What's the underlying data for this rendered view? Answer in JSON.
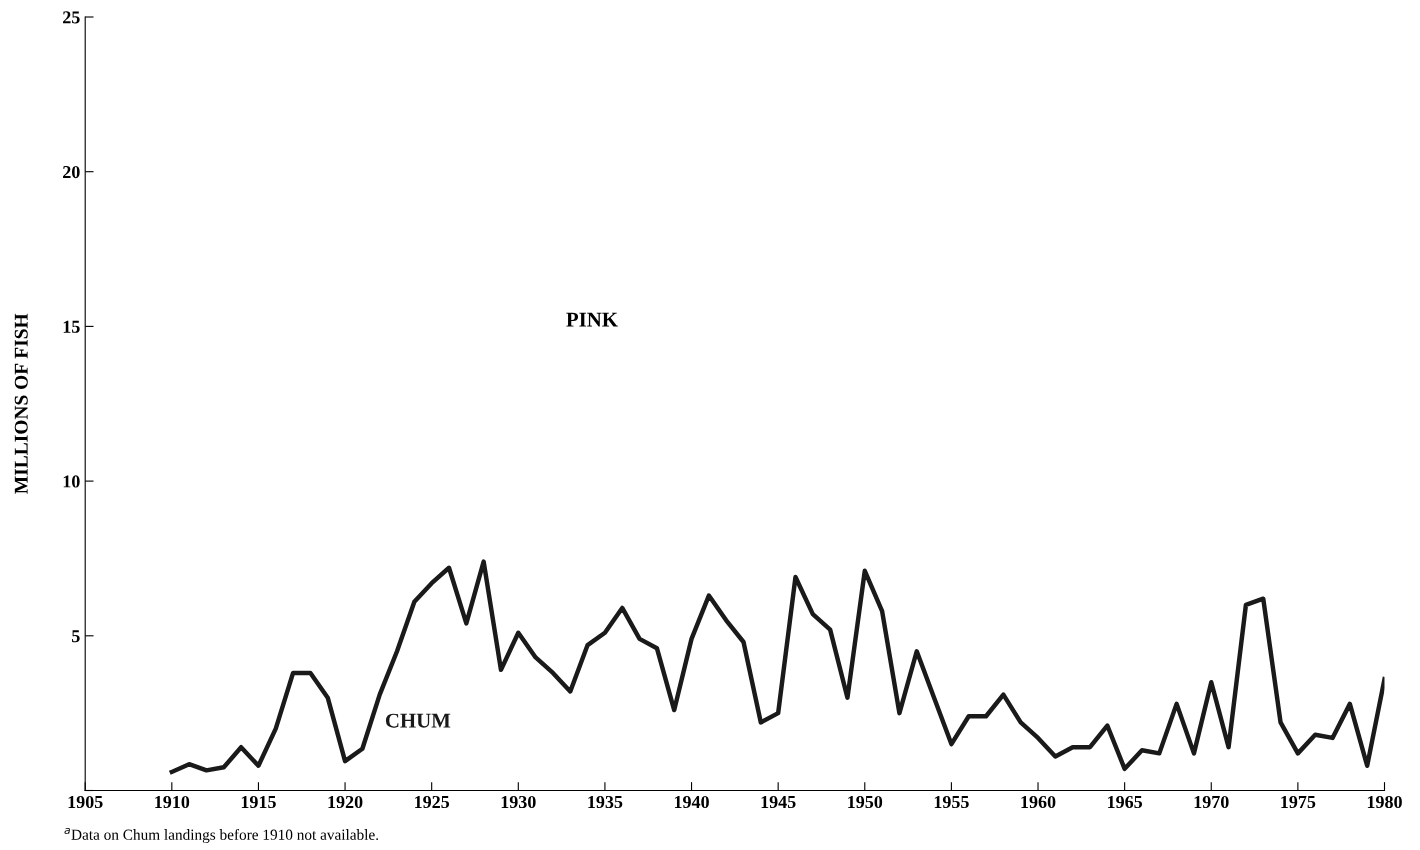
{
  "chart_data": {
    "type": "line",
    "ylabel": "MILLIONS OF FISH",
    "x": [
      1910,
      1911,
      1912,
      1913,
      1914,
      1915,
      1916,
      1917,
      1918,
      1919,
      1920,
      1921,
      1922,
      1923,
      1924,
      1925,
      1926,
      1927,
      1928,
      1929,
      1930,
      1931,
      1932,
      1933,
      1934,
      1935,
      1936,
      1937,
      1938,
      1939,
      1940,
      1941,
      1942,
      1943,
      1944,
      1945,
      1946,
      1947,
      1948,
      1949,
      1950,
      1951,
      1952,
      1953,
      1954,
      1955,
      1956,
      1957,
      1958,
      1959,
      1960,
      1961,
      1962,
      1963,
      1964,
      1965,
      1966,
      1967,
      1968,
      1969,
      1970,
      1971,
      1972,
      1973,
      1974,
      1975,
      1976,
      1977,
      1978,
      1979,
      1980
    ],
    "series": [
      {
        "name": "CHUM",
        "color": "#1a1a1a",
        "values": [
          0.6,
          0.85,
          0.65,
          0.75,
          1.4,
          0.8,
          2.0,
          3.8,
          3.8,
          3.0,
          0.95,
          1.35,
          3.1,
          4.5,
          6.1,
          6.7,
          7.2,
          5.4,
          7.4,
          3.9,
          5.1,
          4.3,
          3.8,
          3.2,
          4.7,
          5.1,
          5.9,
          4.9,
          4.6,
          2.6,
          4.9,
          6.3,
          5.5,
          4.8,
          2.2,
          2.5,
          6.9,
          5.7,
          5.2,
          3.0,
          7.1,
          5.8,
          2.5,
          4.5,
          3.0,
          1.5,
          2.4,
          2.4,
          3.1,
          2.2,
          1.7,
          1.1,
          1.4,
          1.4,
          2.1,
          0.7,
          1.3,
          1.2,
          2.8,
          1.2,
          3.5,
          1.4,
          6.0,
          6.2,
          2.2,
          1.2,
          1.8,
          1.7,
          2.8,
          0.8,
          3.6
        ]
      }
    ],
    "xlim": [
      1905,
      1980
    ],
    "xticks": [
      1905,
      1910,
      1915,
      1920,
      1925,
      1930,
      1935,
      1940,
      1945,
      1950,
      1955,
      1960,
      1965,
      1970,
      1975,
      1980
    ],
    "ylim": [
      0,
      25
    ],
    "yticks": [
      {
        "value": 0,
        "label": null
      },
      5,
      10,
      15,
      20,
      25
    ],
    "grid": false,
    "legend": false,
    "marker": "none",
    "line_style": "solid",
    "annotations": [
      "PINK",
      "$^{a}$Data on Chum landings before 1910 not available."
    ]
  }
}
